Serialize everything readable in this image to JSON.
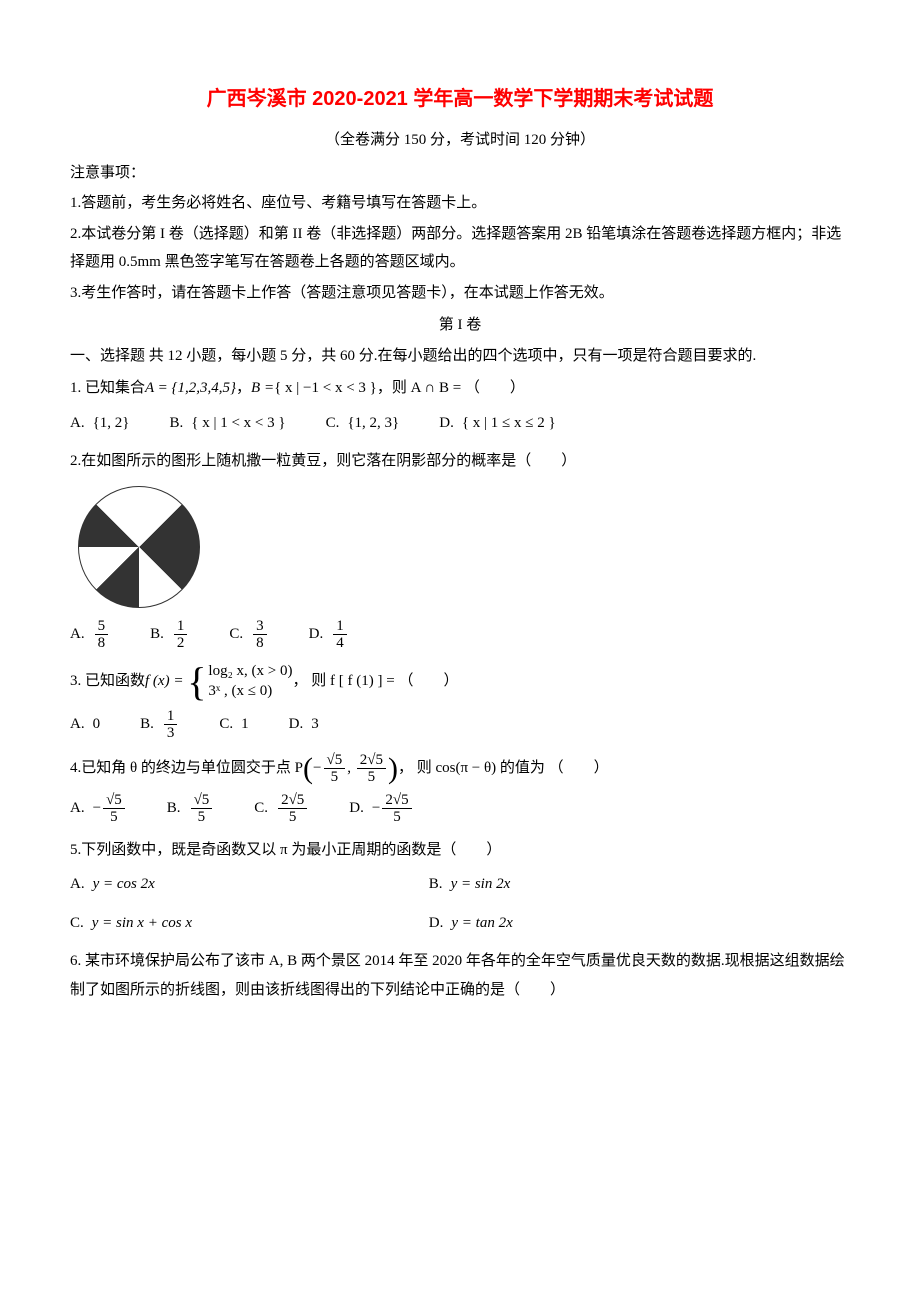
{
  "title": "广西岑溪市 2020-2021 学年高一数学下学期期末考试试题",
  "subtitle": "（全卷满分 150 分，考试时间 120 分钟）",
  "notice_head": "注意事项：",
  "notices": [
    "1.答题前，考生务必将姓名、座位号、考籍号填写在答题卡上。",
    "2.本试卷分第 I 卷（选择题）和第 II 卷（非选择题）两部分。选择题答案用 2B 铅笔填涂在答题卷选择题方框内；非选择题用 0.5mm 黑色签字笔写在答题卷上各题的答题区域内。",
    "3.考生作答时，请在答题卡上作答（答题注意项见答题卡），在本试题上作答无效。"
  ],
  "section1": "第 I 卷",
  "part1_instr": "一、选择题 共 12 小题，每小题 5 分，共 60 分.在每小题给出的四个选项中，只有一项是符合题目要求的.",
  "q1": {
    "stem_pre": "1. 已知集合 ",
    "setA": "A = {1,2,3,4,5}",
    "comma": " ，  ",
    "setB_pre": "B = ",
    "setB_cond": "{ x | −1 < x < 3 }",
    "stem_post": " ，则 A ∩ B =  （　　）",
    "optA": "{1, 2}",
    "optB": "{ x | 1 < x < 3 }",
    "optC": "{1, 2, 3}",
    "optD": "{ x | 1 ≤ x ≤ 2 }"
  },
  "q2": {
    "stem": "2.在如图所示的图形上随机撒一粒黄豆，则它落在阴影部分的概率是（　　）",
    "optA_num": "5",
    "optA_den": "8",
    "optB_num": "1",
    "optB_den": "2",
    "optC_num": "3",
    "optC_den": "8",
    "optD_num": "1",
    "optD_den": "4"
  },
  "q3": {
    "stem_pre": "3. 已知函数 ",
    "fx": "f (x) =",
    "case1": "log₂ x, (x > 0)",
    "case2": "3ˣ , (x ≤ 0)",
    "stem_post": " ， 则 f [ f (1) ] =  （　　）",
    "optA": "0",
    "optB_num": "1",
    "optB_den": "3",
    "optC": "1",
    "optD": "3"
  },
  "q4": {
    "stem_pre": "4.已知角 θ 的终边与单位圆交于点 P",
    "px_sign": "−",
    "px_num": "√5",
    "px_den": "5",
    "py_num": "2√5",
    "py_den": "5",
    "stem_post": "， 则 cos(π − θ) 的值为 （　　）",
    "optA_sign": "−",
    "optA_num": "√5",
    "optA_den": "5",
    "optB_num": "√5",
    "optB_den": "5",
    "optC_num": "2√5",
    "optC_den": "5",
    "optD_sign": "−",
    "optD_num": "2√5",
    "optD_den": "5"
  },
  "q5": {
    "stem": "5.下列函数中，既是奇函数又以 π 为最小正周期的函数是（　　）",
    "optA": "y = cos 2x",
    "optB": "y = sin 2x",
    "optC": "y = sin x + cos x",
    "optD": "y = tan 2x"
  },
  "q6": {
    "stem": "6. 某市环境保护局公布了该市 A, B 两个景区 2014 年至 2020 年各年的全年空气质量优良天数的数据.现根据这组数据绘制了如图所示的折线图，则由该折线图得出的下列结论中正确的是（　　）"
  },
  "labels": {
    "A": "A.",
    "B": "B.",
    "C": "C.",
    "D": "D."
  },
  "colors": {
    "title": "#ff0000",
    "text": "#000000",
    "bg": "#ffffff"
  }
}
